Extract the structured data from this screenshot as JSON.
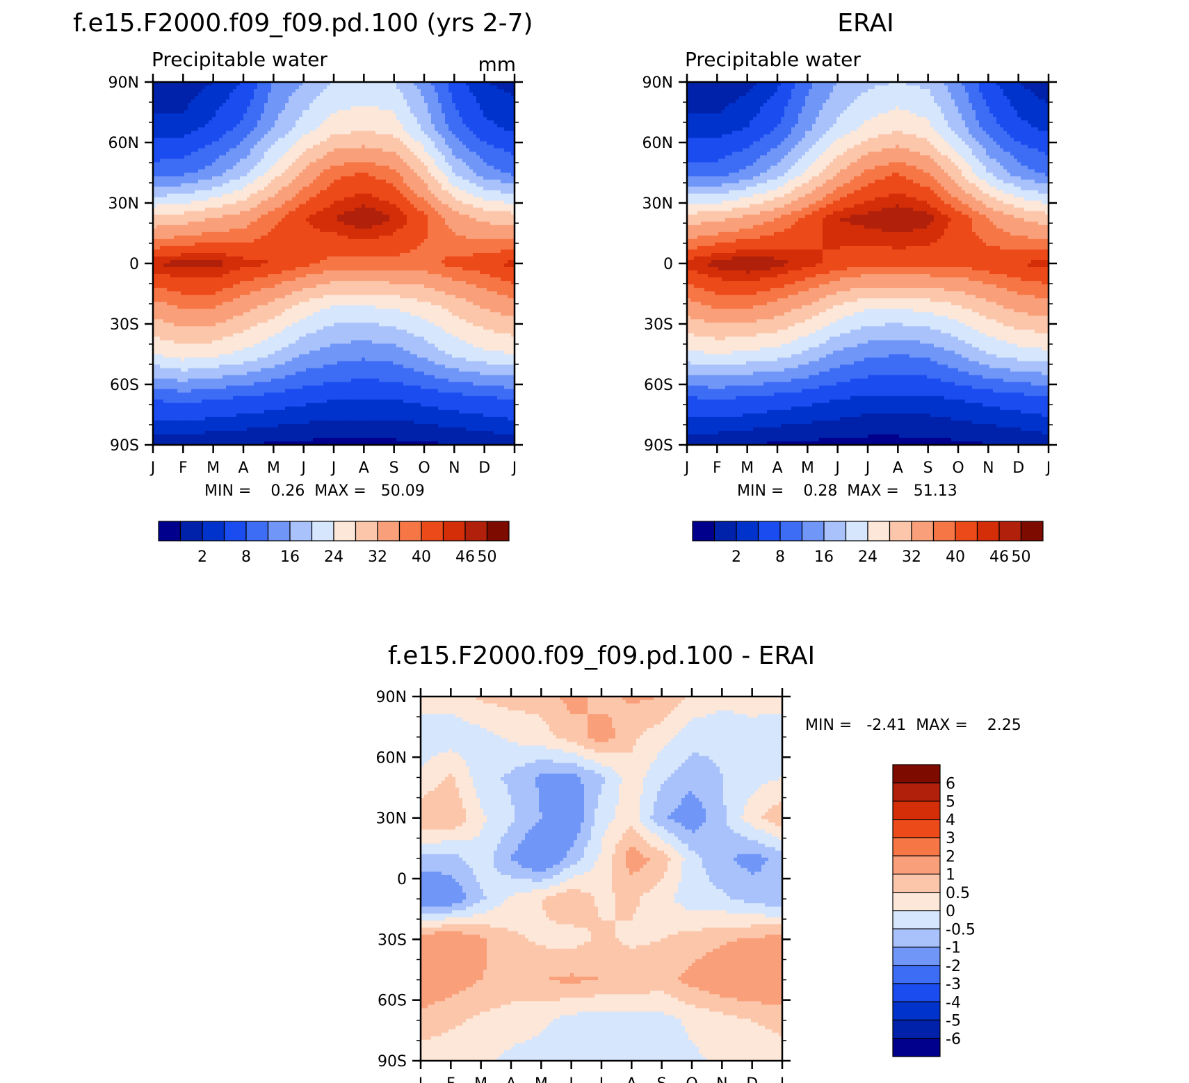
{
  "panels": [
    {
      "id": "model",
      "title": "f.e15.F2000.f09_f09.pd.100 (yrs 2-7)",
      "left_label": "Precipitable water",
      "right_label": "mm",
      "stats": "MIN =    0.26  MAX =   50.09"
    },
    {
      "id": "obs",
      "title": "ERAI",
      "left_label": "Precipitable water",
      "right_label": "",
      "stats": "MIN =    0.28  MAX =   51.13"
    },
    {
      "id": "diff",
      "title": "f.e15.F2000.f09_f09.pd.100 - ERAI",
      "left_label": "",
      "right_label": "",
      "stats": "MIN =   -2.41  MAX =    2.25"
    }
  ],
  "chart_data": [
    {
      "type": "heatmap",
      "title": "f.e15.F2000.f09_f09.pd.100 (yrs 2-7)",
      "subtitle": "Precipitable water",
      "units": "mm",
      "x_ticks": [
        "J",
        "F",
        "M",
        "A",
        "M",
        "J",
        "J",
        "A",
        "S",
        "O",
        "N",
        "D",
        "J"
      ],
      "y_ticks": [
        "90N",
        "60N",
        "30N",
        "0",
        "30S",
        "60S",
        "90S"
      ],
      "ylim": [
        -90,
        90
      ],
      "min": 0.26,
      "max": 50.09,
      "levels_labeled": [
        "2",
        "8",
        "16",
        "24",
        "32",
        "40",
        "46",
        "50"
      ],
      "colors": [
        "#00008c",
        "#0022aa",
        "#0033cc",
        "#1a4cf0",
        "#3d6cf5",
        "#7096f8",
        "#a9c2fb",
        "#d6e6fd",
        "#fde7d8",
        "#fcc6ab",
        "#f9a07a",
        "#f67646",
        "#ed4a1a",
        "#d42e08",
        "#b0200a",
        "#7d0b00"
      ],
      "thresholds": [
        2,
        5,
        8,
        12,
        16,
        20,
        24,
        28,
        32,
        36,
        40,
        43,
        46,
        48,
        50
      ],
      "field": [
        [
          3,
          3,
          5,
          8,
          16,
          20,
          24,
          25,
          24,
          18,
          10,
          5,
          4
        ],
        [
          6,
          6,
          9,
          13,
          20,
          26,
          30,
          31,
          30,
          23,
          14,
          9,
          7
        ],
        [
          14,
          15,
          18,
          23,
          30,
          37,
          42,
          43,
          41,
          34,
          24,
          18,
          15
        ],
        [
          33,
          34,
          36,
          38,
          42,
          46,
          48,
          50,
          48,
          44,
          38,
          35,
          34
        ],
        [
          48,
          49,
          49,
          47,
          46,
          44,
          42,
          42,
          42,
          42,
          44,
          45,
          47
        ],
        [
          38,
          40,
          40,
          37,
          34,
          30,
          27,
          27,
          28,
          30,
          33,
          36,
          38
        ],
        [
          28,
          30,
          29,
          27,
          24,
          20,
          18,
          17,
          18,
          21,
          25,
          27,
          28
        ],
        [
          12,
          13,
          12,
          11,
          10,
          9,
          8,
          8,
          8,
          9,
          10,
          11,
          12
        ],
        [
          3,
          3,
          2,
          2,
          1.5,
          1.2,
          1,
          1,
          1.2,
          1.5,
          2,
          2.5,
          3
        ]
      ]
    },
    {
      "type": "heatmap",
      "title": "ERAI",
      "subtitle": "Precipitable water",
      "x_ticks": [
        "J",
        "F",
        "M",
        "A",
        "M",
        "J",
        "J",
        "A",
        "S",
        "O",
        "N",
        "D",
        "J"
      ],
      "y_ticks": [
        "90N",
        "60N",
        "30N",
        "0",
        "30S",
        "60S",
        "90S"
      ],
      "ylim": [
        -90,
        90
      ],
      "min": 0.28,
      "max": 51.13,
      "levels_labeled": [
        "2",
        "8",
        "16",
        "24",
        "32",
        "40",
        "46",
        "50"
      ],
      "colors": [
        "#00008c",
        "#0022aa",
        "#0033cc",
        "#1a4cf0",
        "#3d6cf5",
        "#7096f8",
        "#a9c2fb",
        "#d6e6fd",
        "#fde7d8",
        "#fcc6ab",
        "#f9a07a",
        "#f67646",
        "#ed4a1a",
        "#d42e08",
        "#b0200a",
        "#7d0b00"
      ],
      "thresholds": [
        2,
        5,
        8,
        12,
        16,
        20,
        24,
        28,
        32,
        36,
        40,
        43,
        46,
        48,
        50
      ],
      "field": [
        [
          3,
          2.5,
          4,
          7,
          15,
          20,
          23,
          24,
          23,
          17,
          9,
          5,
          3
        ],
        [
          6,
          6,
          8,
          12,
          19,
          25,
          29,
          31,
          29,
          22,
          14,
          9,
          7
        ],
        [
          14,
          14,
          17,
          22,
          29,
          36,
          41,
          43,
          40,
          33,
          24,
          18,
          15
        ],
        [
          34,
          35,
          37,
          40,
          44,
          48,
          49,
          50,
          49,
          45,
          40,
          36,
          34
        ],
        [
          47,
          49,
          50,
          49,
          47,
          45,
          44,
          44,
          44,
          44,
          45,
          46,
          47
        ],
        [
          38,
          40,
          40,
          38,
          35,
          31,
          28,
          28,
          29,
          31,
          34,
          37,
          38
        ],
        [
          27,
          28,
          27,
          26,
          23,
          19,
          17,
          16,
          17,
          20,
          24,
          26,
          27
        ],
        [
          11,
          12,
          11,
          10,
          9,
          8,
          7,
          7,
          7,
          8,
          9,
          10,
          11
        ],
        [
          3,
          2.5,
          2,
          1.5,
          1.2,
          1,
          0.8,
          0.8,
          1,
          1.3,
          1.8,
          2.3,
          3
        ]
      ]
    },
    {
      "type": "heatmap",
      "title": "f.e15.F2000.f09_f09.pd.100 - ERAI",
      "x_ticks": [
        "J",
        "F",
        "M",
        "A",
        "M",
        "J",
        "J",
        "A",
        "S",
        "O",
        "N",
        "D",
        "J"
      ],
      "y_ticks": [
        "90N",
        "60N",
        "30N",
        "0",
        "30S",
        "60S",
        "90S"
      ],
      "ylim": [
        -90,
        90
      ],
      "min": -2.41,
      "max": 2.25,
      "levels_labeled": [
        "6",
        "5",
        "4",
        "3",
        "2",
        "1",
        "0.5",
        "0",
        "-0.5",
        "-1",
        "-2",
        "-3",
        "-4",
        "-5",
        "-6"
      ],
      "colors": [
        "#00008c",
        "#0022aa",
        "#0033cc",
        "#1a4cf0",
        "#3d6cf5",
        "#7096f8",
        "#a9c2fb",
        "#d6e6fd",
        "#fde7d8",
        "#fcc6ab",
        "#f9a07a",
        "#f67646",
        "#ed4a1a",
        "#d42e08",
        "#b0200a",
        "#7d0b00"
      ],
      "thresholds": [
        -6,
        -5,
        -4,
        -3,
        -2,
        -1,
        -0.5,
        0,
        0.5,
        1,
        2,
        3,
        4,
        5,
        6
      ],
      "field": [
        [
          0.2,
          0.2,
          0.6,
          0.7,
          0.7,
          1.2,
          0.8,
          1.1,
          1.0,
          0.4,
          0.2,
          0.2,
          0.2
        ],
        [
          -0.3,
          -0.3,
          -0.2,
          0.1,
          0.3,
          0.7,
          1.3,
          0.6,
          0.2,
          -0.3,
          -0.4,
          -0.2,
          -0.3
        ],
        [
          0.1,
          0.6,
          -0.3,
          -0.6,
          -1.1,
          -1.2,
          -0.6,
          0.3,
          -0.4,
          -0.8,
          -0.5,
          -0.2,
          0.0
        ],
        [
          0.9,
          1.0,
          0.1,
          -0.4,
          -1.0,
          -1.6,
          -0.2,
          0.3,
          -0.9,
          -1.4,
          -0.6,
          0.3,
          0.9
        ],
        [
          -0.6,
          -0.7,
          -0.2,
          -1.0,
          -1.8,
          -0.8,
          0.1,
          1.3,
          0.8,
          -0.3,
          -0.9,
          -1.2,
          -0.8
        ],
        [
          -1.7,
          -1.5,
          -0.6,
          0.1,
          0.5,
          0.9,
          0.4,
          0.6,
          0.2,
          -0.3,
          -0.4,
          -0.7,
          -0.9
        ],
        [
          1.4,
          1.6,
          1.1,
          0.6,
          0.4,
          0.3,
          0.6,
          0.4,
          0.5,
          0.7,
          0.9,
          1.1,
          1.2
        ],
        [
          1.5,
          1.3,
          1.0,
          0.9,
          1.0,
          1.1,
          1.0,
          0.9,
          0.8,
          1.2,
          1.5,
          1.6,
          1.6
        ],
        [
          0.8,
          0.6,
          0.4,
          0.2,
          0.1,
          -0.2,
          -0.3,
          -0.3,
          -0.2,
          0.1,
          0.3,
          0.5,
          0.7
        ],
        [
          0.2,
          0.2,
          0.1,
          -0.1,
          -0.2,
          -0.3,
          -0.3,
          -0.3,
          -0.2,
          -0.1,
          0.1,
          0.1,
          0.2
        ]
      ]
    }
  ]
}
